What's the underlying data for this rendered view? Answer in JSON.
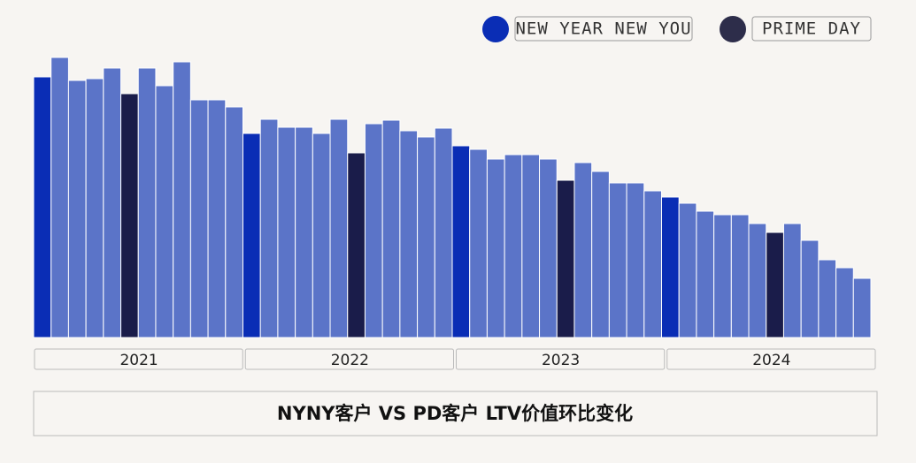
{
  "chart_data": {
    "type": "bar",
    "title": "NYNY客户 VS PD客户 LTV价值环比变化",
    "groups": [
      "2021",
      "2022",
      "2023",
      "2024"
    ],
    "values": [
      295,
      317,
      291,
      293,
      305,
      276,
      305,
      285,
      312,
      269,
      269,
      261,
      231,
      247,
      238,
      238,
      231,
      247,
      209,
      242,
      246,
      234,
      227,
      237,
      217,
      213,
      202,
      207,
      207,
      202,
      178,
      198,
      188,
      175,
      175,
      166,
      159,
      152,
      143,
      139,
      139,
      129,
      119,
      129,
      110,
      88,
      79,
      67
    ],
    "colors": [
      "#0a2db5",
      "#5b74c8",
      "#5b74c8",
      "#5b74c8",
      "#5b74c8",
      "#1a1c4a",
      "#5b74c8",
      "#5b74c8",
      "#5b74c8",
      "#5b74c8",
      "#5b74c8",
      "#5b74c8",
      "#0a2db5",
      "#5b74c8",
      "#5b74c8",
      "#5b74c8",
      "#5b74c8",
      "#5b74c8",
      "#1a1c4a",
      "#5b74c8",
      "#5b74c8",
      "#5b74c8",
      "#5b74c8",
      "#5b74c8",
      "#0a2db5",
      "#5b74c8",
      "#5b74c8",
      "#5b74c8",
      "#5b74c8",
      "#5b74c8",
      "#1a1c4a",
      "#5b74c8",
      "#5b74c8",
      "#5b74c8",
      "#5b74c8",
      "#5b74c8",
      "#0a2db5",
      "#5b74c8",
      "#5b74c8",
      "#5b74c8",
      "#5b74c8",
      "#5b74c8",
      "#1a1c4a",
      "#5b74c8",
      "#5b74c8",
      "#5b74c8",
      "#5b74c8",
      "#5b74c8"
    ],
    "legend": [
      {
        "name": "NEW YEAR NEW YOU",
        "color": "#0a2db5"
      },
      {
        "name": "PRIME DAY",
        "color": "#2d2d4a"
      }
    ],
    "ylim": [
      0,
      332
    ]
  }
}
